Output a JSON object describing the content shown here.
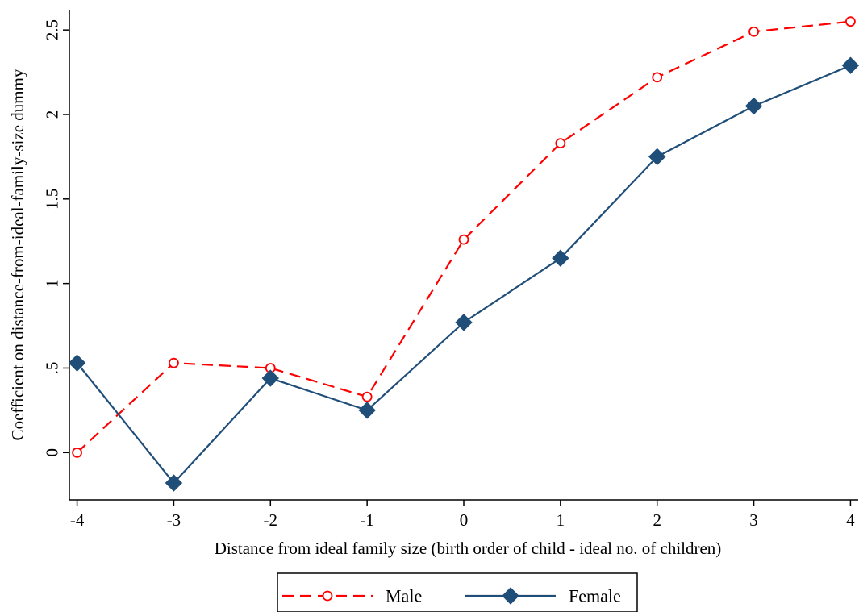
{
  "chart_data": {
    "type": "line",
    "title": "",
    "xlabel": "Distance from ideal family size (birth order of child - ideal no. of children)",
    "ylabel": "Coefficient on distance-from-ideal-family-size dummy",
    "x": [
      -4,
      -3,
      -2,
      -1,
      0,
      1,
      2,
      3,
      4
    ],
    "x_ticks": [
      "-4",
      "-3",
      "-2",
      "-1",
      "0",
      "1",
      "2",
      "3",
      "4"
    ],
    "y_ticks": [
      {
        "value": 0,
        "label": "0"
      },
      {
        "value": 0.5,
        "label": ".5"
      },
      {
        "value": 1,
        "label": "1"
      },
      {
        "value": 1.5,
        "label": "1.5"
      },
      {
        "value": 2,
        "label": "2"
      },
      {
        "value": 2.5,
        "label": "2.5"
      }
    ],
    "xlim": [
      -4.08,
      4.08
    ],
    "ylim": [
      -0.28,
      2.62
    ],
    "grid": false,
    "legend_position": "bottom",
    "series": [
      {
        "name": "Male",
        "color": "#ff0000",
        "line_style": "dashed",
        "marker": "hollow-circle",
        "values": [
          0.0,
          0.53,
          0.5,
          0.33,
          1.26,
          1.83,
          2.22,
          2.49,
          2.55
        ]
      },
      {
        "name": "Female",
        "color": "#1f4e79",
        "line_style": "solid",
        "marker": "filled-diamond",
        "values": [
          0.53,
          -0.18,
          0.44,
          0.25,
          0.77,
          1.15,
          1.75,
          2.05,
          2.29
        ]
      }
    ]
  }
}
